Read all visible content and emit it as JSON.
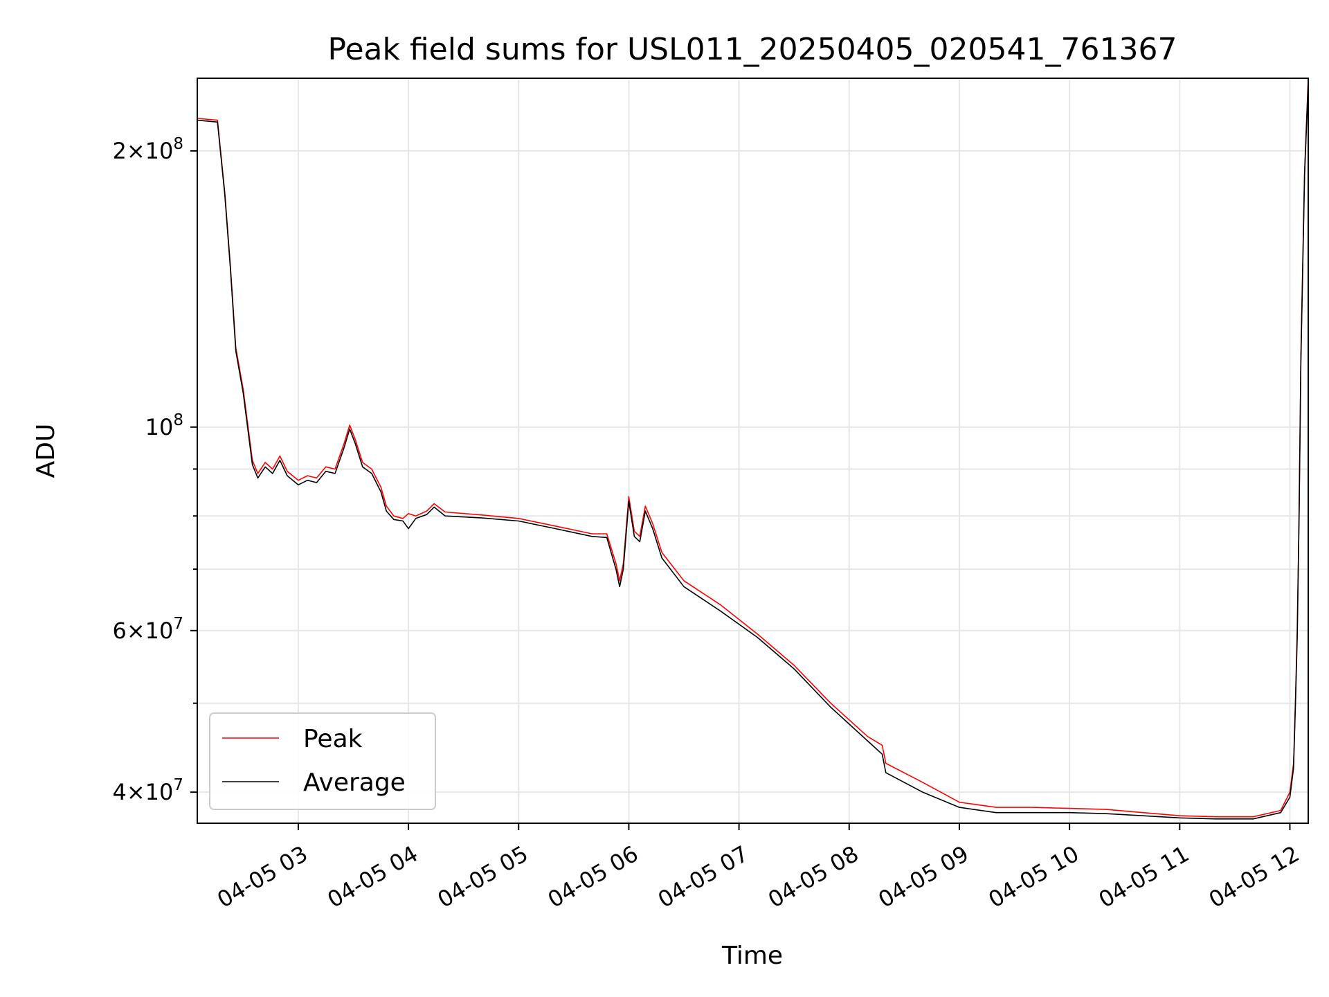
{
  "chart_data": {
    "type": "line",
    "title": "Peak field sums for USL011_20250405_020541_761367",
    "xlabel": "Time",
    "ylabel": "ADU",
    "yscale": "log",
    "ylim": [
      37000000,
      240000000
    ],
    "xlim": [
      "2025-04-05 02:05",
      "2025-04-05 12:10"
    ],
    "grid": true,
    "legend_position": "lower-left",
    "x_ticks": [
      {
        "t": "2025-04-05 03:00",
        "label": "04-05 03"
      },
      {
        "t": "2025-04-05 04:00",
        "label": "04-05 04"
      },
      {
        "t": "2025-04-05 05:00",
        "label": "04-05 05"
      },
      {
        "t": "2025-04-05 06:00",
        "label": "04-05 06"
      },
      {
        "t": "2025-04-05 07:00",
        "label": "04-05 07"
      },
      {
        "t": "2025-04-05 08:00",
        "label": "04-05 08"
      },
      {
        "t": "2025-04-05 09:00",
        "label": "04-05 09"
      },
      {
        "t": "2025-04-05 10:00",
        "label": "04-05 10"
      },
      {
        "t": "2025-04-05 11:00",
        "label": "04-05 11"
      },
      {
        "t": "2025-04-05 12:00",
        "label": "04-05 12"
      }
    ],
    "y_ticks": [
      {
        "v": 40000000,
        "base": "4",
        "exp": "7"
      },
      {
        "v": 60000000,
        "base": "6",
        "exp": "7"
      },
      {
        "v": 100000000,
        "base": "",
        "exp": "8"
      },
      {
        "v": 200000000,
        "base": "2",
        "exp": "8"
      }
    ],
    "y_minor_ticks": [
      50000000,
      70000000,
      80000000,
      90000000
    ],
    "series": [
      {
        "name": "Peak",
        "color": "#ff0000",
        "points": [
          [
            "2025-04-05 02:05",
            217000000
          ],
          [
            "2025-04-05 02:16",
            216000000
          ],
          [
            "2025-04-05 02:20",
            180000000
          ],
          [
            "2025-04-05 02:23",
            150000000
          ],
          [
            "2025-04-05 02:26",
            122000000
          ],
          [
            "2025-04-05 02:30",
            110000000
          ],
          [
            "2025-04-05 02:35",
            92000000
          ],
          [
            "2025-04-05 02:38",
            89000000
          ],
          [
            "2025-04-05 02:42",
            91500000
          ],
          [
            "2025-04-05 02:46",
            90000000
          ],
          [
            "2025-04-05 02:50",
            93000000
          ],
          [
            "2025-04-05 02:54",
            89500000
          ],
          [
            "2025-04-05 03:00",
            87500000
          ],
          [
            "2025-04-05 03:05",
            88500000
          ],
          [
            "2025-04-05 03:10",
            88000000
          ],
          [
            "2025-04-05 03:15",
            90500000
          ],
          [
            "2025-04-05 03:20",
            90000000
          ],
          [
            "2025-04-05 03:25",
            96000000
          ],
          [
            "2025-04-05 03:28",
            100500000
          ],
          [
            "2025-04-05 03:31",
            97000000
          ],
          [
            "2025-04-05 03:35",
            91500000
          ],
          [
            "2025-04-05 03:40",
            90000000
          ],
          [
            "2025-04-05 03:45",
            86000000
          ],
          [
            "2025-04-05 03:48",
            82000000
          ],
          [
            "2025-04-05 03:52",
            80000000
          ],
          [
            "2025-04-05 03:57",
            79500000
          ],
          [
            "2025-04-05 04:00",
            80500000
          ],
          [
            "2025-04-05 04:04",
            80000000
          ],
          [
            "2025-04-05 04:10",
            81000000
          ],
          [
            "2025-04-05 04:14",
            82500000
          ],
          [
            "2025-04-05 04:20",
            80800000
          ],
          [
            "2025-04-05 04:40",
            80200000
          ],
          [
            "2025-04-05 05:00",
            79500000
          ],
          [
            "2025-04-05 05:20",
            78000000
          ],
          [
            "2025-04-05 05:40",
            76500000
          ],
          [
            "2025-04-05 05:48",
            76500000
          ],
          [
            "2025-04-05 05:53",
            71000000
          ],
          [
            "2025-04-05 05:55",
            68000000
          ],
          [
            "2025-04-05 05:57",
            71000000
          ],
          [
            "2025-04-05 06:00",
            84000000
          ],
          [
            "2025-04-05 06:03",
            77000000
          ],
          [
            "2025-04-05 06:06",
            76000000
          ],
          [
            "2025-04-05 06:09",
            82000000
          ],
          [
            "2025-04-05 06:13",
            78500000
          ],
          [
            "2025-04-05 06:18",
            73000000
          ],
          [
            "2025-04-05 06:30",
            68000000
          ],
          [
            "2025-04-05 06:50",
            64000000
          ],
          [
            "2025-04-05 07:10",
            59500000
          ],
          [
            "2025-04-05 07:30",
            55000000
          ],
          [
            "2025-04-05 07:50",
            50000000
          ],
          [
            "2025-04-05 08:10",
            46000000
          ],
          [
            "2025-04-05 08:18",
            45000000
          ],
          [
            "2025-04-05 08:20",
            43000000
          ],
          [
            "2025-04-05 08:40",
            41000000
          ],
          [
            "2025-04-05 09:00",
            39000000
          ],
          [
            "2025-04-05 09:20",
            38500000
          ],
          [
            "2025-04-05 09:40",
            38500000
          ],
          [
            "2025-04-05 10:00",
            38400000
          ],
          [
            "2025-04-05 10:20",
            38300000
          ],
          [
            "2025-04-05 10:40",
            38000000
          ],
          [
            "2025-04-05 11:00",
            37700000
          ],
          [
            "2025-04-05 11:20",
            37600000
          ],
          [
            "2025-04-05 11:40",
            37600000
          ],
          [
            "2025-04-05 11:55",
            38200000
          ],
          [
            "2025-04-05 12:00",
            40000000
          ],
          [
            "2025-04-05 12:02",
            43000000
          ],
          [
            "2025-04-05 12:03",
            50000000
          ],
          [
            "2025-04-05 12:04",
            60000000
          ],
          [
            "2025-04-05 12:05",
            80000000
          ],
          [
            "2025-04-05 12:06",
            120000000
          ],
          [
            "2025-04-05 12:08",
            190000000
          ],
          [
            "2025-04-05 12:10",
            240000000
          ]
        ]
      },
      {
        "name": "Average",
        "color": "#000000",
        "points": [
          [
            "2025-04-05 02:05",
            216000000
          ],
          [
            "2025-04-05 02:16",
            215000000
          ],
          [
            "2025-04-05 02:20",
            179000000
          ],
          [
            "2025-04-05 02:23",
            149000000
          ],
          [
            "2025-04-05 02:26",
            121000000
          ],
          [
            "2025-04-05 02:30",
            109000000
          ],
          [
            "2025-04-05 02:35",
            91000000
          ],
          [
            "2025-04-05 02:38",
            88000000
          ],
          [
            "2025-04-05 02:42",
            90500000
          ],
          [
            "2025-04-05 02:46",
            89000000
          ],
          [
            "2025-04-05 02:50",
            92000000
          ],
          [
            "2025-04-05 02:54",
            88500000
          ],
          [
            "2025-04-05 03:00",
            86500000
          ],
          [
            "2025-04-05 03:05",
            87500000
          ],
          [
            "2025-04-05 03:10",
            87000000
          ],
          [
            "2025-04-05 03:15",
            89500000
          ],
          [
            "2025-04-05 03:20",
            89000000
          ],
          [
            "2025-04-05 03:25",
            95000000
          ],
          [
            "2025-04-05 03:28",
            99500000
          ],
          [
            "2025-04-05 03:31",
            96000000
          ],
          [
            "2025-04-05 03:35",
            90500000
          ],
          [
            "2025-04-05 03:40",
            89000000
          ],
          [
            "2025-04-05 03:45",
            85000000
          ],
          [
            "2025-04-05 03:48",
            81000000
          ],
          [
            "2025-04-05 03:52",
            79300000
          ],
          [
            "2025-04-05 03:57",
            79000000
          ],
          [
            "2025-04-05 04:00",
            77500000
          ],
          [
            "2025-04-05 04:04",
            79500000
          ],
          [
            "2025-04-05 04:10",
            80300000
          ],
          [
            "2025-04-05 04:14",
            81800000
          ],
          [
            "2025-04-05 04:20",
            80000000
          ],
          [
            "2025-04-05 04:40",
            79600000
          ],
          [
            "2025-04-05 05:00",
            79000000
          ],
          [
            "2025-04-05 05:20",
            77500000
          ],
          [
            "2025-04-05 05:40",
            76000000
          ],
          [
            "2025-04-05 05:48",
            75800000
          ],
          [
            "2025-04-05 05:53",
            70000000
          ],
          [
            "2025-04-05 05:55",
            67000000
          ],
          [
            "2025-04-05 05:57",
            70000000
          ],
          [
            "2025-04-05 06:00",
            83000000
          ],
          [
            "2025-04-05 06:03",
            76000000
          ],
          [
            "2025-04-05 06:06",
            75000000
          ],
          [
            "2025-04-05 06:09",
            81000000
          ],
          [
            "2025-04-05 06:13",
            77500000
          ],
          [
            "2025-04-05 06:18",
            72000000
          ],
          [
            "2025-04-05 06:30",
            67000000
          ],
          [
            "2025-04-05 06:50",
            63000000
          ],
          [
            "2025-04-05 07:10",
            59000000
          ],
          [
            "2025-04-05 07:30",
            54500000
          ],
          [
            "2025-04-05 07:50",
            49500000
          ],
          [
            "2025-04-05 08:10",
            45500000
          ],
          [
            "2025-04-05 08:18",
            44000000
          ],
          [
            "2025-04-05 08:20",
            42000000
          ],
          [
            "2025-04-05 08:40",
            40000000
          ],
          [
            "2025-04-05 09:00",
            38500000
          ],
          [
            "2025-04-05 09:20",
            38000000
          ],
          [
            "2025-04-05 09:40",
            38000000
          ],
          [
            "2025-04-05 10:00",
            38000000
          ],
          [
            "2025-04-05 10:20",
            37900000
          ],
          [
            "2025-04-05 10:40",
            37700000
          ],
          [
            "2025-04-05 11:00",
            37500000
          ],
          [
            "2025-04-05 11:20",
            37400000
          ],
          [
            "2025-04-05 11:40",
            37400000
          ],
          [
            "2025-04-05 11:55",
            38000000
          ],
          [
            "2025-04-05 12:00",
            39500000
          ],
          [
            "2025-04-05 12:02",
            42500000
          ],
          [
            "2025-04-05 12:03",
            49500000
          ],
          [
            "2025-04-05 12:04",
            59000000
          ],
          [
            "2025-04-05 12:05",
            79000000
          ],
          [
            "2025-04-05 12:06",
            118000000
          ],
          [
            "2025-04-05 12:08",
            188000000
          ],
          [
            "2025-04-05 12:10",
            238000000
          ]
        ]
      }
    ]
  }
}
